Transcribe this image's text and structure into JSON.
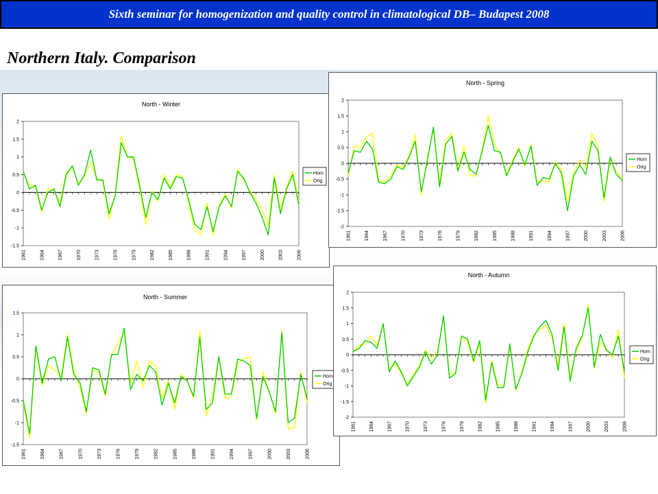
{
  "header": {
    "banner_text": "Sixth seminar for homogenization and quality control  in climatological DB– Budapest 2008"
  },
  "slide": {
    "title": "Northern Italy. Comparison"
  },
  "colors": {
    "banner_bg": "#0033cc",
    "hom_line": "#00cc00",
    "orig_line": "#ffff00"
  },
  "chart_data": [
    {
      "type": "line",
      "title": "North - Winter",
      "xlabel": "",
      "ylabel": "",
      "xlim": [
        1961,
        2006
      ],
      "ylim": [
        -1.5,
        2
      ],
      "yticks": [
        -1.5,
        -1,
        -0.5,
        0,
        0.5,
        1,
        1.5,
        2
      ],
      "xticks": [
        1961,
        1964,
        1967,
        1970,
        1973,
        1976,
        1979,
        1982,
        1985,
        1988,
        1991,
        1994,
        1997,
        2000,
        2003,
        2006
      ],
      "legend": [
        "Hom",
        "Orig"
      ],
      "series": [
        {
          "name": "Hom",
          "color": "#00cc00",
          "x": [
            1961,
            1962,
            1963,
            1964,
            1965,
            1966,
            1967,
            1968,
            1969,
            1970,
            1971,
            1972,
            1973,
            1974,
            1975,
            1976,
            1977,
            1978,
            1979,
            1980,
            1981,
            1982,
            1983,
            1984,
            1985,
            1986,
            1987,
            1988,
            1989,
            1990,
            1991,
            1992,
            1993,
            1994,
            1995,
            1996,
            1997,
            1998,
            1999,
            2000,
            2001,
            2002,
            2003,
            2004,
            2005,
            2006
          ],
          "y": [
            0.6,
            0.1,
            0.2,
            -0.5,
            0.0,
            0.1,
            -0.4,
            0.5,
            0.75,
            0.2,
            0.5,
            1.2,
            0.35,
            0.35,
            -0.6,
            -0.1,
            1.4,
            1.0,
            1.0,
            0.2,
            -0.7,
            0.0,
            -0.2,
            0.4,
            0.1,
            0.45,
            0.4,
            -0.2,
            -0.9,
            -1.05,
            -0.4,
            -1.1,
            -0.4,
            -0.1,
            -0.4,
            0.6,
            0.4,
            0.0,
            -0.3,
            -0.7,
            -1.2,
            0.4,
            -0.6,
            0.1,
            0.5,
            -0.35
          ]
        },
        {
          "name": "Orig",
          "color": "#ffff00",
          "x": [
            1961,
            1962,
            1963,
            1964,
            1965,
            1966,
            1967,
            1968,
            1969,
            1970,
            1971,
            1972,
            1973,
            1974,
            1975,
            1976,
            1977,
            1978,
            1979,
            1980,
            1981,
            1982,
            1983,
            1984,
            1985,
            1986,
            1987,
            1988,
            1989,
            1990,
            1991,
            1992,
            1993,
            1994,
            1995,
            1996,
            1997,
            1998,
            1999,
            2000,
            2001,
            2002,
            2003,
            2004,
            2005,
            2006
          ],
          "y": [
            0.55,
            0.2,
            0.15,
            -0.55,
            0.1,
            0.05,
            -0.3,
            0.55,
            0.7,
            0.25,
            0.45,
            0.85,
            0.4,
            0.3,
            -0.75,
            -0.05,
            1.6,
            1.0,
            0.95,
            0.1,
            -0.9,
            0.05,
            -0.25,
            0.5,
            0.15,
            0.5,
            0.45,
            -0.3,
            -1.05,
            -1.2,
            -0.3,
            -1.2,
            -0.35,
            -0.05,
            -0.45,
            0.65,
            0.35,
            0.05,
            -0.2,
            -0.5,
            -0.95,
            0.5,
            -0.5,
            0.15,
            0.6,
            -0.25
          ]
        }
      ]
    },
    {
      "type": "line",
      "title": "North - Spring",
      "xlabel": "",
      "ylabel": "",
      "xlim": [
        1961,
        2006
      ],
      "ylim": [
        -2,
        2
      ],
      "yticks": [
        -2,
        -1.5,
        -1,
        -0.5,
        0,
        0.5,
        1,
        1.5,
        2
      ],
      "xticks": [
        1961,
        1964,
        1967,
        1970,
        1973,
        1976,
        1979,
        1982,
        1985,
        1988,
        1991,
        1994,
        1997,
        2000,
        2003,
        2006
      ],
      "legend": [
        "Hom",
        "Orig"
      ],
      "series": [
        {
          "name": "Hom",
          "color": "#00cc00",
          "x": [
            1961,
            1962,
            1963,
            1964,
            1965,
            1966,
            1967,
            1968,
            1969,
            1970,
            1971,
            1972,
            1973,
            1974,
            1975,
            1976,
            1977,
            1978,
            1979,
            1980,
            1981,
            1982,
            1983,
            1984,
            1985,
            1986,
            1987,
            1988,
            1989,
            1990,
            1991,
            1992,
            1993,
            1994,
            1995,
            1996,
            1997,
            1998,
            1999,
            2000,
            2001,
            2002,
            2003,
            2004,
            2005,
            2006
          ],
          "y": [
            -0.3,
            0.4,
            0.35,
            0.7,
            0.45,
            -0.6,
            -0.65,
            -0.5,
            -0.1,
            -0.2,
            0.2,
            0.7,
            -0.9,
            0.1,
            1.15,
            -0.75,
            0.6,
            0.85,
            -0.25,
            0.35,
            -0.2,
            -0.35,
            0.4,
            1.2,
            0.4,
            0.35,
            -0.4,
            0.05,
            0.45,
            -0.05,
            0.55,
            -0.7,
            -0.45,
            -0.5,
            0.0,
            -0.3,
            -1.5,
            -0.4,
            -0.05,
            -0.35,
            0.7,
            0.4,
            -1.1,
            0.2,
            -0.35,
            -0.55
          ]
        },
        {
          "name": "Orig",
          "color": "#ffff00",
          "x": [
            1961,
            1962,
            1963,
            1964,
            1965,
            1966,
            1967,
            1968,
            1969,
            1970,
            1971,
            1972,
            1973,
            1974,
            1975,
            1976,
            1977,
            1978,
            1979,
            1980,
            1981,
            1982,
            1983,
            1984,
            1985,
            1986,
            1987,
            1988,
            1989,
            1990,
            1991,
            1992,
            1993,
            1994,
            1995,
            1996,
            1997,
            1998,
            1999,
            2000,
            2001,
            2002,
            2003,
            2004,
            2005,
            2006
          ],
          "y": [
            -0.4,
            0.55,
            0.5,
            0.85,
            0.95,
            -0.55,
            -0.6,
            -0.4,
            -0.05,
            -0.15,
            0.25,
            0.9,
            -1.0,
            0.2,
            1.05,
            -0.6,
            0.7,
            0.95,
            -0.2,
            0.55,
            -0.4,
            -0.4,
            0.45,
            1.5,
            0.6,
            0.3,
            -0.35,
            0.1,
            0.5,
            -0.1,
            0.6,
            -0.6,
            -0.55,
            -0.6,
            0.05,
            -0.2,
            -1.2,
            -0.3,
            0.1,
            -0.15,
            0.95,
            0.55,
            -1.2,
            0.1,
            -0.25,
            -0.5
          ]
        }
      ]
    },
    {
      "type": "line",
      "title": "North - Summer",
      "xlabel": "",
      "ylabel": "",
      "xlim": [
        1961,
        2006
      ],
      "ylim": [
        -1.5,
        1.5
      ],
      "yticks": [
        -1.5,
        -1,
        -0.5,
        0,
        0.5,
        1,
        1.5
      ],
      "xticks": [
        1961,
        1964,
        1967,
        1970,
        1973,
        1976,
        1979,
        1982,
        1985,
        1988,
        1991,
        1994,
        1997,
        2000,
        2003,
        2006
      ],
      "legend": [
        "Hom",
        "Orig"
      ],
      "series": [
        {
          "name": "Hom",
          "color": "#00cc00",
          "x": [
            1961,
            1962,
            1963,
            1964,
            1965,
            1966,
            1967,
            1968,
            1969,
            1970,
            1971,
            1972,
            1973,
            1974,
            1975,
            1976,
            1977,
            1978,
            1979,
            1980,
            1981,
            1982,
            1983,
            1984,
            1985,
            1986,
            1987,
            1988,
            1989,
            1990,
            1991,
            1992,
            1993,
            1994,
            1995,
            1996,
            1997,
            1998,
            1999,
            2000,
            2001,
            2002,
            2003,
            2004,
            2005,
            2006
          ],
          "y": [
            -0.5,
            -1.25,
            0.75,
            -0.1,
            0.45,
            0.5,
            -0.05,
            0.95,
            0.1,
            -0.1,
            -0.75,
            0.25,
            0.2,
            -0.35,
            0.55,
            0.55,
            1.15,
            -0.25,
            0.1,
            -0.05,
            0.3,
            0.15,
            -0.6,
            -0.1,
            -0.55,
            0.05,
            -0.05,
            -0.4,
            0.95,
            -0.7,
            -0.55,
            0.5,
            -0.35,
            -0.35,
            0.45,
            0.4,
            0.3,
            -0.9,
            0.05,
            -0.3,
            -0.75,
            1.05,
            -1.0,
            -0.9,
            0.1,
            -0.45
          ]
        },
        {
          "name": "Orig",
          "color": "#ffff00",
          "x": [
            1961,
            1962,
            1963,
            1964,
            1965,
            1966,
            1967,
            1968,
            1969,
            1970,
            1971,
            1972,
            1973,
            1974,
            1975,
            1976,
            1977,
            1978,
            1979,
            1980,
            1981,
            1982,
            1983,
            1984,
            1985,
            1986,
            1987,
            1988,
            1989,
            1990,
            1991,
            1992,
            1993,
            1994,
            1995,
            1996,
            1997,
            1998,
            1999,
            2000,
            2001,
            2002,
            2003,
            2004,
            2005,
            2006
          ],
          "y": [
            -0.55,
            -1.35,
            0.7,
            -0.15,
            0.3,
            0.2,
            0.05,
            1.0,
            0.2,
            -0.2,
            -0.8,
            0.2,
            0.15,
            -0.4,
            0.55,
            0.8,
            1.05,
            -0.1,
            0.4,
            -0.2,
            0.4,
            0.3,
            -0.45,
            -0.05,
            -0.7,
            0.1,
            -0.05,
            -0.45,
            1.1,
            -0.85,
            -0.4,
            0.5,
            -0.45,
            -0.4,
            0.35,
            0.45,
            0.5,
            -0.95,
            0.15,
            -0.3,
            -0.8,
            1.1,
            -1.15,
            -1.1,
            0.15,
            -0.55
          ]
        }
      ]
    },
    {
      "type": "line",
      "title": "North - Autumn",
      "xlabel": "",
      "ylabel": "",
      "xlim": [
        1961,
        2006
      ],
      "ylim": [
        -2,
        2
      ],
      "yticks": [
        -2,
        -1.5,
        -1,
        -0.5,
        0,
        0.5,
        1,
        1.5,
        2
      ],
      "xticks": [
        1961,
        1964,
        1967,
        1970,
        1973,
        1976,
        1979,
        1982,
        1985,
        1988,
        1991,
        1994,
        1997,
        2000,
        2003,
        2006
      ],
      "legend": [
        "Hom",
        "Orig"
      ],
      "series": [
        {
          "name": "Hom",
          "color": "#00cc00",
          "x": [
            1961,
            1962,
            1963,
            1964,
            1965,
            1966,
            1967,
            1968,
            1969,
            1970,
            1971,
            1972,
            1973,
            1974,
            1975,
            1976,
            1977,
            1978,
            1979,
            1980,
            1981,
            1982,
            1983,
            1984,
            1985,
            1986,
            1987,
            1988,
            1989,
            1990,
            1991,
            1992,
            1993,
            1994,
            1995,
            1996,
            1997,
            1998,
            1999,
            2000,
            2001,
            2002,
            2003,
            2004,
            2005,
            2006
          ],
          "y": [
            0.1,
            0.2,
            0.45,
            0.4,
            0.2,
            1.0,
            -0.55,
            -0.2,
            -0.55,
            -1.0,
            -0.7,
            -0.4,
            0.1,
            -0.3,
            0.0,
            1.25,
            -0.75,
            -0.6,
            0.6,
            0.5,
            -0.2,
            0.45,
            -1.45,
            -0.25,
            -1.05,
            -1.05,
            0.35,
            -1.1,
            -0.6,
            0.1,
            0.6,
            0.9,
            1.1,
            0.65,
            -0.5,
            0.9,
            -0.85,
            0.2,
            0.6,
            1.5,
            -0.4,
            0.65,
            0.15,
            0.0,
            0.6,
            -0.55
          ]
        },
        {
          "name": "Orig",
          "color": "#ffff00",
          "x": [
            1961,
            1962,
            1963,
            1964,
            1965,
            1966,
            1967,
            1968,
            1969,
            1970,
            1971,
            1972,
            1973,
            1974,
            1975,
            1976,
            1977,
            1978,
            1979,
            1980,
            1981,
            1982,
            1983,
            1984,
            1985,
            1986,
            1987,
            1988,
            1989,
            1990,
            1991,
            1992,
            1993,
            1994,
            1995,
            1996,
            1997,
            1998,
            1999,
            2000,
            2001,
            2002,
            2003,
            2004,
            2005,
            2006
          ],
          "y": [
            0.1,
            0.3,
            0.35,
            0.6,
            0.3,
            0.95,
            -0.45,
            -0.3,
            -0.6,
            -0.95,
            -0.65,
            -0.35,
            0.15,
            -0.1,
            0.1,
            1.2,
            -0.65,
            -0.55,
            0.55,
            0.4,
            -0.25,
            0.35,
            -1.55,
            -0.2,
            -0.95,
            -1.0,
            0.3,
            -1.15,
            -0.55,
            0.2,
            0.65,
            0.8,
            0.95,
            0.55,
            -0.35,
            1.0,
            -0.7,
            0.1,
            0.55,
            1.6,
            -0.45,
            0.4,
            0.2,
            -0.1,
            0.8,
            -0.75
          ]
        }
      ]
    }
  ]
}
